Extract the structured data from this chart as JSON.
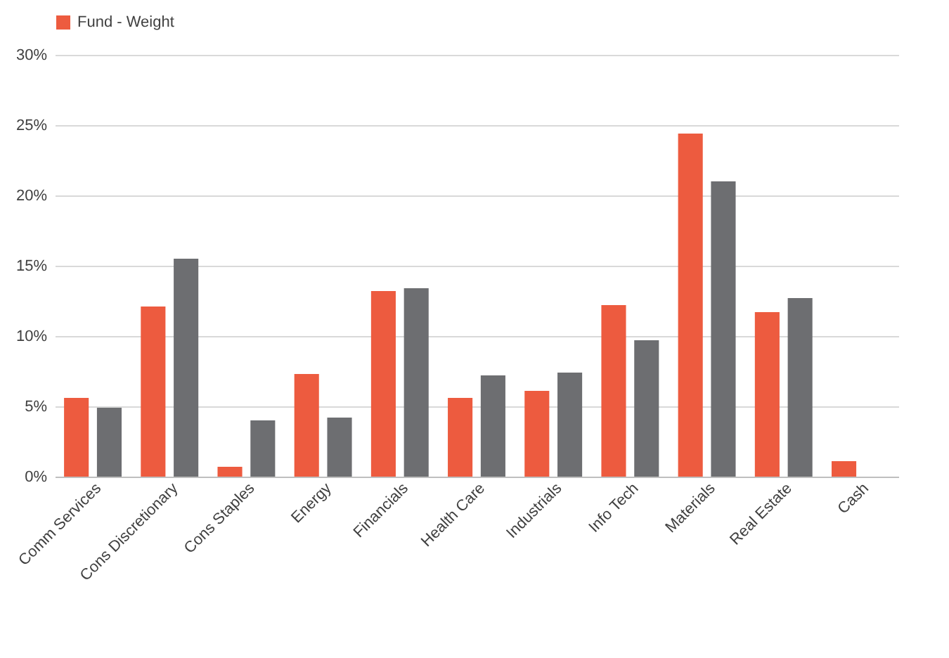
{
  "chart_data": {
    "type": "bar",
    "categories": [
      "Comm Services",
      "Cons Discretionary",
      "Cons Staples",
      "Energy",
      "Financials",
      "Health Care",
      "Industrials",
      "Info Tech",
      "Materials",
      "Real Estate",
      "Cash"
    ],
    "series": [
      {
        "name": "Fund - Weight",
        "color": "#ed5b3f",
        "values": [
          5.6,
          12.1,
          0.7,
          7.3,
          13.2,
          5.6,
          6.1,
          12.2,
          24.4,
          11.7,
          1.1
        ]
      },
      {
        "color": "#6d6e71",
        "values": [
          4.9,
          15.5,
          4.0,
          4.2,
          13.4,
          7.2,
          7.4,
          9.7,
          21.0,
          12.7,
          null
        ]
      }
    ],
    "ylim": [
      0,
      30
    ],
    "yticks": [
      {
        "value": 0,
        "label": "0%"
      },
      {
        "value": 5,
        "label": "5%"
      },
      {
        "value": 10,
        "label": "10%"
      },
      {
        "value": 15,
        "label": "15%"
      },
      {
        "value": 20,
        "label": "20%"
      },
      {
        "value": 25,
        "label": "25%"
      },
      {
        "value": 30,
        "label": "30%"
      }
    ],
    "grid": "y",
    "legend": "top"
  }
}
